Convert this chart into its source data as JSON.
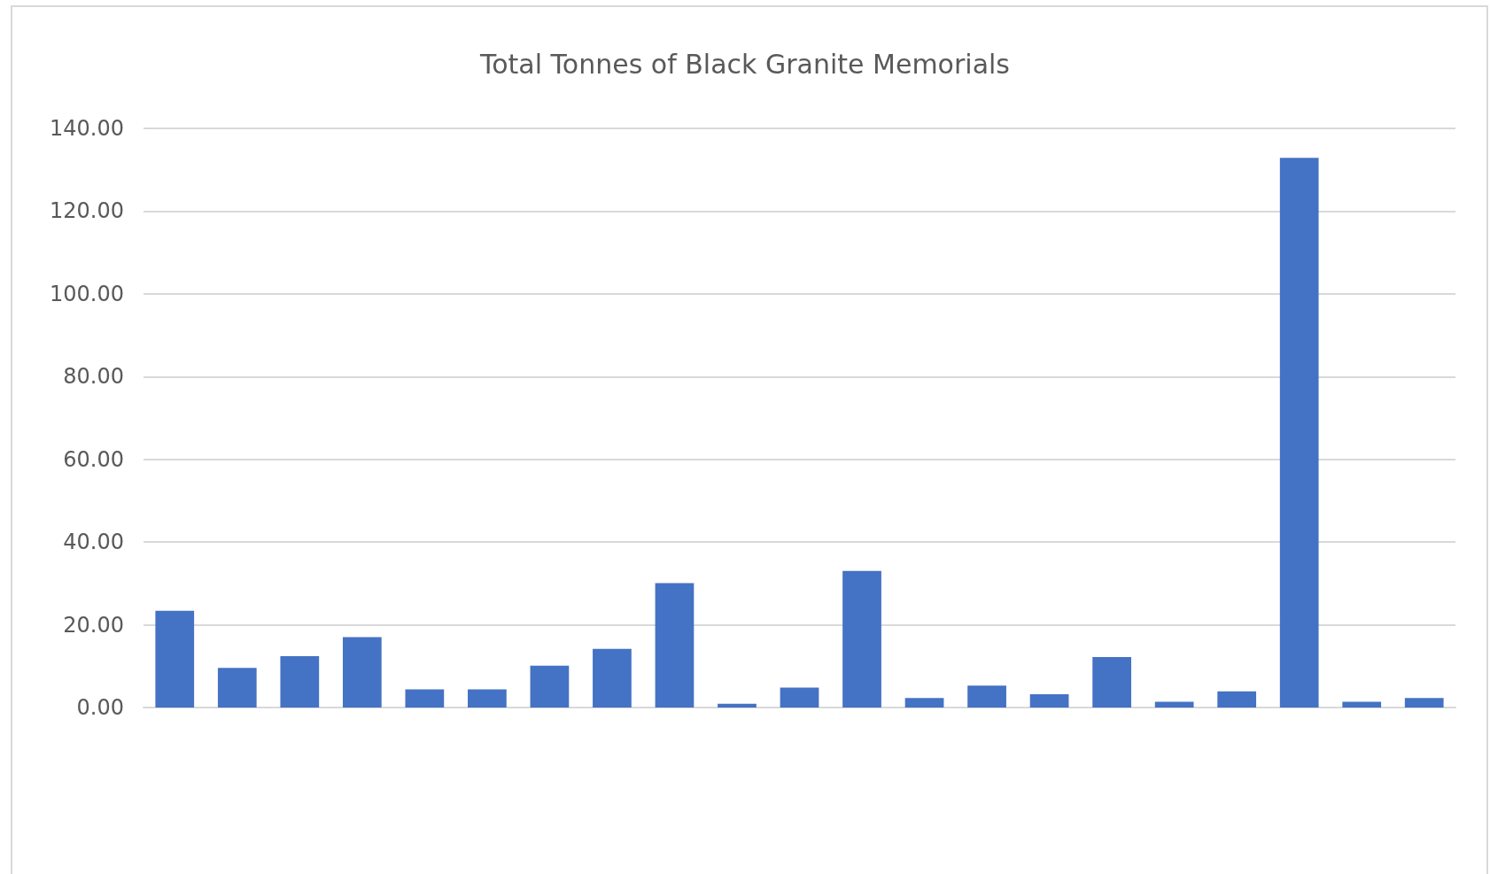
{
  "chart_data": {
    "type": "bar",
    "title": "Total Tonnes of Black Granite Memorials",
    "categories": [
      null,
      null,
      null,
      null,
      null,
      null,
      null,
      null,
      null,
      null,
      null,
      null,
      null,
      null,
      null,
      null,
      null,
      null,
      null,
      null,
      null
    ],
    "values": [
      23.4,
      9.6,
      12.4,
      17.0,
      4.4,
      4.4,
      10.1,
      14.2,
      30.1,
      0.9,
      4.8,
      33.0,
      2.3,
      5.3,
      3.2,
      12.2,
      1.4,
      3.9,
      132.9,
      1.4,
      2.3
    ],
    "color": "#4472c4",
    "ylim": [
      0,
      140
    ],
    "yticks": [
      {
        "value": 0,
        "label": "0.00"
      },
      {
        "value": 20,
        "label": "20.00"
      },
      {
        "value": 40,
        "label": "40.00"
      },
      {
        "value": 60,
        "label": "60.00"
      },
      {
        "value": 80,
        "label": "80.00"
      },
      {
        "value": 100,
        "label": "100.00"
      },
      {
        "value": 120,
        "label": "120.00"
      },
      {
        "value": 140,
        "label": "140.00"
      }
    ],
    "grid": true
  }
}
